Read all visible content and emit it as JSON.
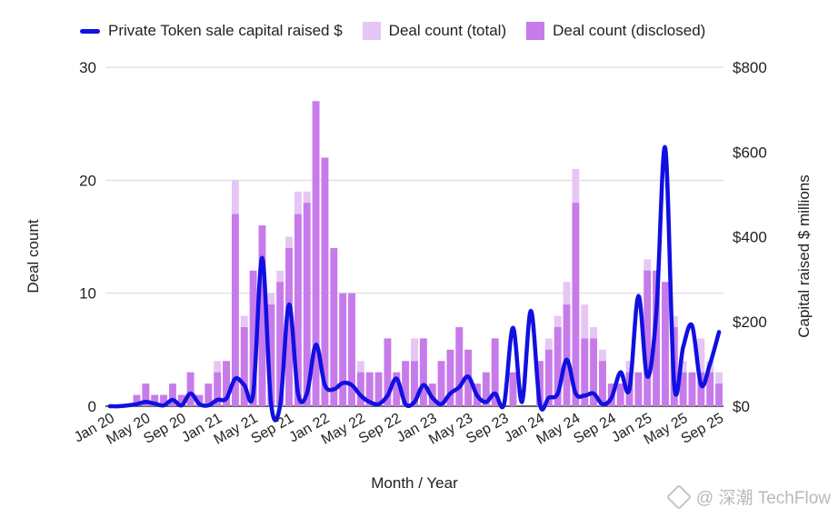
{
  "legend": [
    {
      "label": "Private Token sale capital raised $",
      "kind": "line"
    },
    {
      "label": "Deal count (total)",
      "kind": "box"
    },
    {
      "label": "Deal count (disclosed)",
      "kind": "box"
    }
  ],
  "colors": {
    "line": "#1010e0",
    "total": "#e6c6f5",
    "disclosed": "#c77bea",
    "grid": "#d6d6d6",
    "text": "#222222"
  },
  "watermark": {
    "text": "@ 深潮 TechFlow",
    "icon": "diamond-logo-icon"
  },
  "chart_data": {
    "type": "bar",
    "title": "",
    "xlabel": "Month / Year",
    "ylabel": "Deal count",
    "y2label": "Capital raised $ millions",
    "ylim": [
      0,
      30
    ],
    "y2lim": [
      0,
      800
    ],
    "yticks": [
      0,
      10,
      20,
      30
    ],
    "y2ticks": [
      "$0",
      "$200",
      "$400",
      "$600",
      "$800"
    ],
    "y2tick_values": [
      0,
      200,
      400,
      600,
      800
    ],
    "x_tick_labels": [
      "Jan 20",
      "May 20",
      "Sep 20",
      "Jan 21",
      "May 21",
      "Sep 21",
      "Jan 22",
      "May 22",
      "Sep 22",
      "Jan 23",
      "May 23",
      "Sep 23",
      "Jan 24",
      "May 24",
      "Sep 24",
      "Jan 25",
      "May 25",
      "Sep 25"
    ],
    "grid": true,
    "legend_position": "top",
    "months": [
      "Jan 20",
      "Feb 20",
      "Mar 20",
      "Apr 20",
      "May 20",
      "Jun 20",
      "Jul 20",
      "Aug 20",
      "Sep 20",
      "Oct 20",
      "Nov 20",
      "Dec 20",
      "Jan 21",
      "Feb 21",
      "Mar 21",
      "Apr 21",
      "May 21",
      "Jun 21",
      "Jul 21",
      "Aug 21",
      "Sep 21",
      "Oct 21",
      "Nov 21",
      "Dec 21",
      "Jan 22",
      "Feb 22",
      "Mar 22",
      "Apr 22",
      "May 22",
      "Jun 22",
      "Jul 22",
      "Aug 22",
      "Sep 22",
      "Oct 22",
      "Nov 22",
      "Dec 22",
      "Jan 23",
      "Feb 23",
      "Mar 23",
      "Apr 23",
      "May 23",
      "Jun 23",
      "Jul 23",
      "Aug 23",
      "Sep 23",
      "Oct 23",
      "Nov 23",
      "Dec 23",
      "Jan 24",
      "Feb 24",
      "Mar 24",
      "Apr 24",
      "May 24",
      "Jun 24",
      "Jul 24",
      "Aug 24",
      "Sep 24",
      "Oct 24",
      "Nov 24",
      "Dec 24",
      "Jan 25",
      "Feb 25",
      "Mar 25",
      "Apr 25",
      "May 25",
      "Jun 25",
      "Jul 25",
      "Aug 25",
      "Sep 25"
    ],
    "series": [
      {
        "name": "Deal count (total)",
        "type": "bar",
        "axis": "left",
        "values": [
          0,
          0,
          0,
          1,
          2,
          1,
          1,
          2,
          1,
          3,
          1,
          2,
          4,
          4,
          20,
          8,
          12,
          16,
          10,
          12,
          15,
          19,
          19,
          27,
          22,
          14,
          10,
          10,
          4,
          3,
          3,
          6,
          3,
          4,
          6,
          6,
          2,
          4,
          5,
          7,
          5,
          2,
          3,
          6,
          0,
          3,
          0,
          0,
          4,
          6,
          8,
          11,
          21,
          9,
          7,
          5,
          2,
          2,
          4,
          3,
          13,
          12,
          11,
          8,
          4,
          3,
          6,
          4,
          3
        ]
      },
      {
        "name": "Deal count (disclosed)",
        "type": "bar",
        "axis": "left",
        "values": [
          0,
          0,
          0,
          1,
          2,
          1,
          1,
          2,
          1,
          3,
          1,
          2,
          3,
          4,
          17,
          7,
          12,
          16,
          9,
          11,
          14,
          17,
          18,
          27,
          22,
          14,
          10,
          10,
          3,
          3,
          3,
          6,
          3,
          4,
          4,
          6,
          2,
          4,
          5,
          7,
          5,
          2,
          3,
          6,
          0,
          3,
          0,
          0,
          4,
          5,
          7,
          9,
          18,
          6,
          6,
          4,
          2,
          2,
          3,
          3,
          12,
          12,
          11,
          7,
          3,
          3,
          3,
          3,
          2
        ]
      },
      {
        "name": "Private Token sale capital raised $",
        "type": "line",
        "axis": "right",
        "values": [
          0,
          0,
          2,
          5,
          10,
          6,
          2,
          15,
          2,
          30,
          5,
          2,
          15,
          18,
          65,
          50,
          30,
          350,
          5,
          2,
          240,
          30,
          30,
          145,
          50,
          40,
          55,
          50,
          25,
          10,
          5,
          25,
          65,
          5,
          10,
          50,
          20,
          5,
          30,
          45,
          70,
          25,
          10,
          30,
          5,
          185,
          10,
          225,
          5,
          20,
          30,
          110,
          30,
          25,
          30,
          5,
          20,
          80,
          40,
          260,
          70,
          220,
          610,
          50,
          140,
          190,
          50,
          100,
          175
        ]
      }
    ]
  }
}
